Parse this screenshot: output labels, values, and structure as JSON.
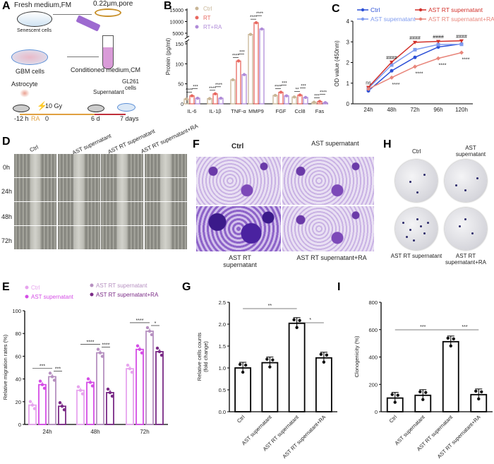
{
  "panel_labels": {
    "a": "A",
    "b": "B",
    "c": "C",
    "d": "D",
    "e": "E",
    "f": "F",
    "g": "G",
    "h": "H",
    "i": "I"
  },
  "panel_a": {
    "fresh_medium": "Fresh medium,FM",
    "filter": "0.22μm,pore",
    "senescent_cells": "Senescent cells",
    "gbm_cells": "GBM cells",
    "conditioned_medium": "Conditioned medium,CM",
    "astrocyte": "Astrocyte",
    "dose": "10 Gy",
    "supernatant": "Supernatant",
    "gl261": "GL261 cells",
    "ra": "RA",
    "timeline": [
      "-12 h",
      "0",
      "6 d",
      "7 days"
    ]
  },
  "panel_d": {
    "columns": [
      "Ctrl",
      "AST supernatant",
      "AST RT supernatant",
      "AST RT supernatant+RA"
    ],
    "rows": [
      "0h",
      "24h",
      "48h",
      "72h"
    ]
  },
  "panel_f": {
    "labels": [
      "Ctrl",
      "AST supernatant",
      "AST RT supernatant",
      "AST RT supernatant+RA"
    ]
  },
  "panel_h": {
    "labels": [
      "Ctrl",
      "AST supernatant",
      "AST RT supernatant",
      "AST RT supernatant+RA"
    ]
  },
  "chart_data": [
    {
      "panel": "B",
      "type": "bar",
      "ylabel": "Protein (pg/ml)",
      "categories": [
        "IL-6",
        "IL-1β",
        "TNF-α",
        "MMP9",
        "FGF",
        "Ccl8",
        "Fas"
      ],
      "series": [
        {
          "name": "Ctrl",
          "color": "#c8b596",
          "values": [
            12,
            13,
            60,
            4500,
            21,
            17,
            4
          ]
        },
        {
          "name": "RT",
          "color": "#e8675f",
          "values": [
            20,
            25,
            107,
            9500,
            29,
            22,
            6
          ]
        },
        {
          "name": "RT+RA",
          "color": "#b08bd8",
          "values": [
            14,
            14,
            73,
            6800,
            20,
            16,
            3
          ]
        }
      ],
      "y_axis_break": true,
      "yticks_lower": [
        0,
        50,
        100,
        150
      ],
      "yticks_upper": [
        5000,
        10000,
        15000
      ],
      "significance": [
        [
          "****",
          "***"
        ],
        [
          "****",
          "****"
        ],
        [
          "****",
          "***"
        ],
        [
          "****",
          "****"
        ],
        [
          "****",
          "***"
        ],
        [
          "**",
          "***"
        ],
        [
          "***",
          "****"
        ]
      ],
      "legend": "top-left"
    },
    {
      "panel": "C",
      "type": "line",
      "ylabel": "OD value (450nm)",
      "x": [
        "24h",
        "48h",
        "72h",
        "96h",
        "120h"
      ],
      "ylim": [
        0,
        4
      ],
      "yticks": [
        0,
        1,
        2,
        3,
        4
      ],
      "series": [
        {
          "name": "Ctrl",
          "color": "#2b4fd6",
          "marker": "circle",
          "values": [
            0.63,
            1.6,
            2.25,
            2.75,
            2.9
          ]
        },
        {
          "name": "AST supernatant",
          "color": "#7f9bef",
          "marker": "square",
          "values": [
            0.75,
            1.88,
            2.62,
            2.87,
            2.88
          ]
        },
        {
          "name": "AST RT supernatant",
          "color": "#d2302a",
          "marker": "triangle-down",
          "values": [
            0.8,
            2.02,
            2.98,
            3.02,
            3.05
          ]
        },
        {
          "name": "AST RT supernatant+RA",
          "color": "#e8857a",
          "marker": "diamond",
          "values": [
            0.72,
            1.27,
            1.8,
            2.2,
            2.48
          ]
        }
      ],
      "annotations_above": [
        "ns",
        "####",
        "####",
        "####",
        "####"
      ],
      "annotations_below": [
        "",
        "****",
        "****",
        "****",
        "****"
      ],
      "legend": "top"
    },
    {
      "panel": "E",
      "type": "bar",
      "ylabel": "Relative migration rates (%)",
      "categories": [
        "24h",
        "48h",
        "72h"
      ],
      "ylim": [
        0,
        100
      ],
      "yticks": [
        0,
        20,
        40,
        60,
        80,
        100
      ],
      "series": [
        {
          "name": "Ctrl",
          "color": "#e7a4ee",
          "values": [
            17,
            30,
            49
          ]
        },
        {
          "name": "AST supernatant",
          "color": "#d54de6",
          "values": [
            35,
            37,
            66
          ]
        },
        {
          "name": "AST RT supernatant",
          "color": "#b690c0",
          "values": [
            42,
            63,
            82
          ]
        },
        {
          "name": "AST RT supernatant+RA",
          "color": "#7a2a86",
          "values": [
            16,
            28,
            64
          ]
        }
      ],
      "significance": [
        [
          "***",
          "***"
        ],
        [
          "****",
          "****"
        ],
        [
          "****",
          "*"
        ]
      ],
      "legend": "top"
    },
    {
      "panel": "G",
      "type": "bar",
      "ylabel": [
        "Relative cells counts",
        "(fold change)"
      ],
      "categories": [
        "Ctrl",
        "AST supernatant",
        "AST RT supernatant",
        "AST RT supernatant+RA"
      ],
      "values": [
        1.0,
        1.12,
        2.02,
        1.23
      ],
      "ylim": [
        0,
        2.5
      ],
      "yticks": [
        "0.0",
        "0.5",
        "1.0",
        "1.5",
        "2.0",
        "2.5"
      ],
      "significance": [
        "**",
        "*"
      ]
    },
    {
      "panel": "I",
      "type": "bar",
      "ylabel": "Clonogenicity (%)",
      "categories": [
        "Ctrl",
        "AST supernatant",
        "AST RT supernatant",
        "AST RT supernatant+RA"
      ],
      "values": [
        100,
        120,
        512,
        125
      ],
      "ylim": [
        0,
        800
      ],
      "yticks": [
        "0",
        "200",
        "400",
        "600",
        "800"
      ],
      "significance": [
        "***",
        "***"
      ]
    }
  ]
}
